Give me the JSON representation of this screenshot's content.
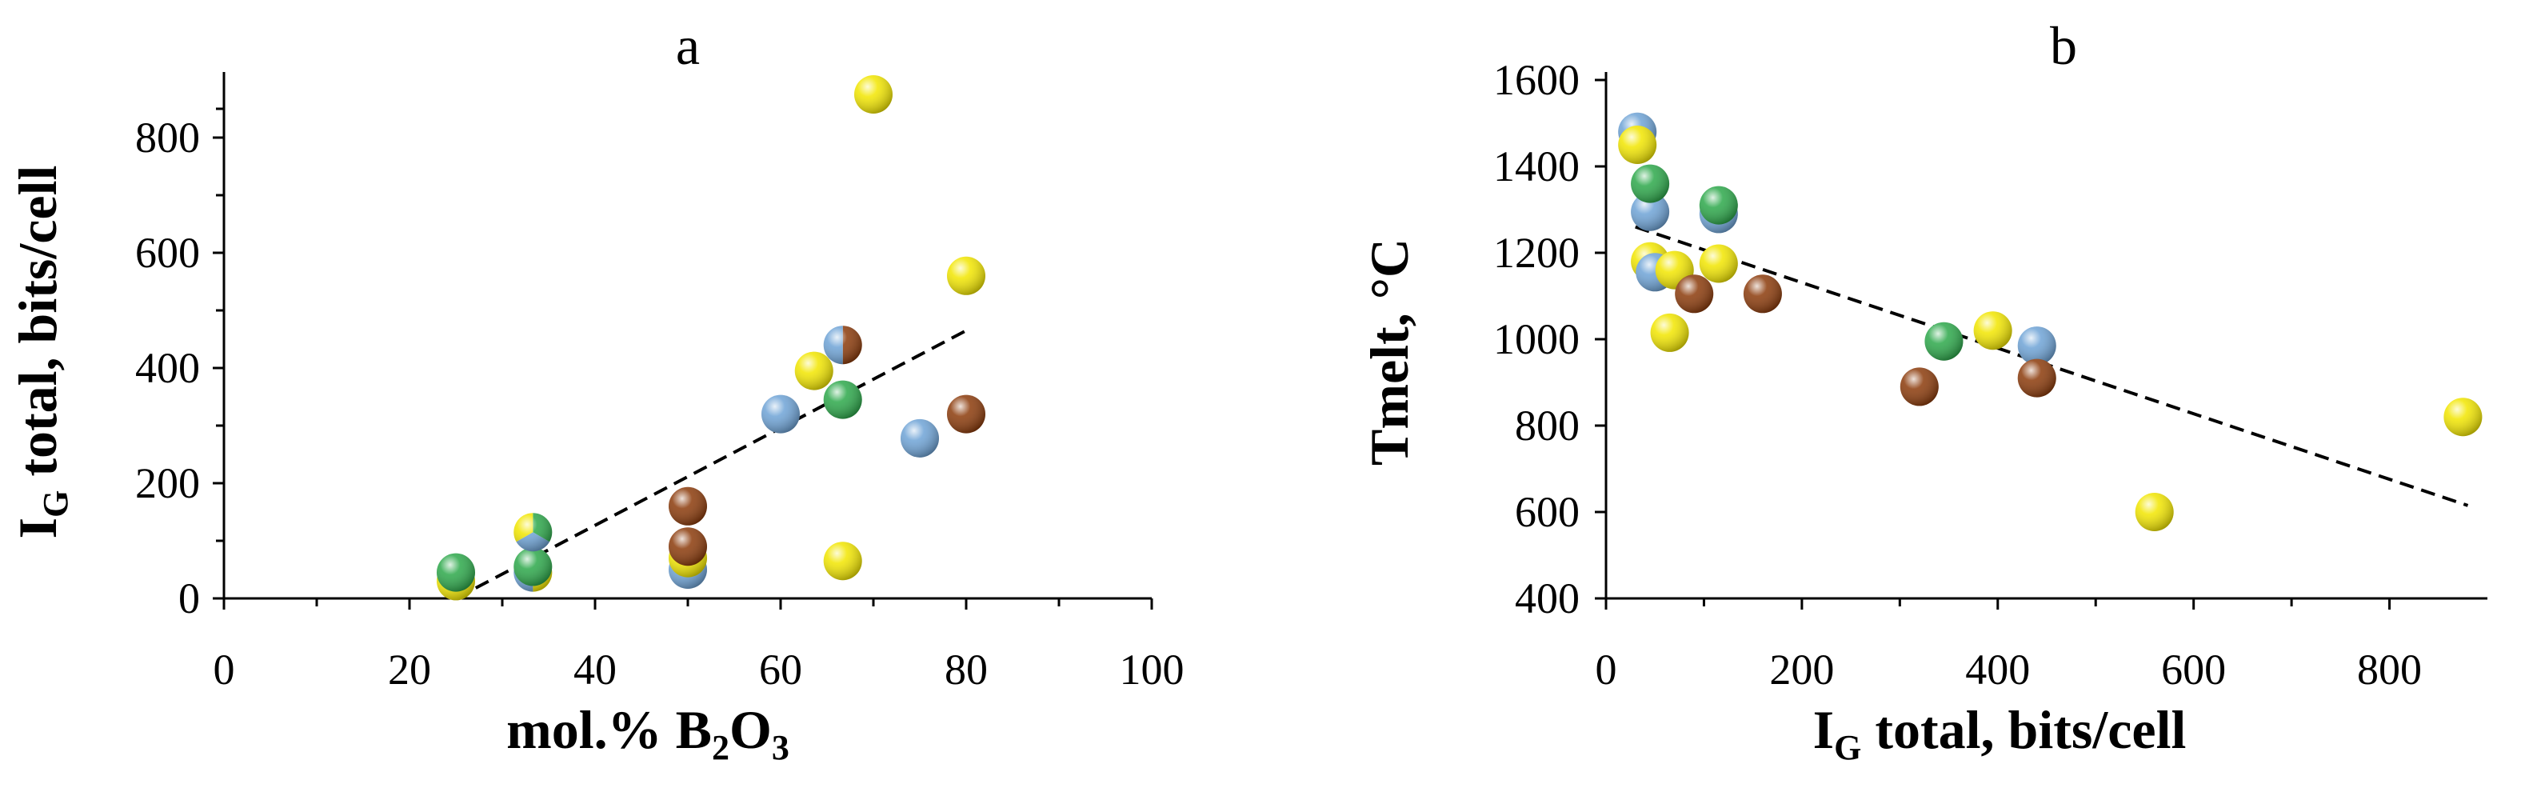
{
  "chart_data": [
    {
      "panel": "a",
      "type": "scatter",
      "xlim": [
        0,
        100
      ],
      "ylim": [
        0,
        900
      ],
      "xticks": [
        0,
        20,
        40,
        60,
        80,
        100
      ],
      "yticks": [
        0,
        200,
        400,
        600,
        800
      ],
      "ylabel_parts": [
        "I",
        "G",
        " total, bits/cell"
      ],
      "xlabel_parts": [
        "mol.% B",
        "2",
        "O",
        "3"
      ],
      "grid": false,
      "legend": "none",
      "trendline": {
        "x": [
          25,
          80
        ],
        "y": [
          0,
          465
        ]
      },
      "points": [
        {
          "x": 25,
          "y": 30,
          "colors": [
            "#f2e600"
          ]
        },
        {
          "x": 25,
          "y": 45,
          "colors": [
            "#2ca84a"
          ]
        },
        {
          "x": 33.3,
          "y": 45,
          "colors": [
            "#f2e600",
            "#6ea3d6"
          ]
        },
        {
          "x": 33.3,
          "y": 55,
          "colors": [
            "#2ca84a"
          ]
        },
        {
          "x": 33.3,
          "y": 115,
          "colors": [
            "#2ca84a",
            "#6ea3d6",
            "#f2e600"
          ]
        },
        {
          "x": 50,
          "y": 50,
          "colors": [
            "#6ea3d6"
          ]
        },
        {
          "x": 50,
          "y": 70,
          "colors": [
            "#f2e600"
          ]
        },
        {
          "x": 50,
          "y": 90,
          "colors": [
            "#8b3a0a"
          ]
        },
        {
          "x": 50,
          "y": 160,
          "colors": [
            "#8b3a0a"
          ]
        },
        {
          "x": 60,
          "y": 320,
          "colors": [
            "#6ea3d6"
          ]
        },
        {
          "x": 63.6,
          "y": 395,
          "colors": [
            "#f2e600"
          ]
        },
        {
          "x": 66.7,
          "y": 65,
          "colors": [
            "#f2e600"
          ]
        },
        {
          "x": 66.7,
          "y": 345,
          "colors": [
            "#2ca84a"
          ]
        },
        {
          "x": 66.7,
          "y": 440,
          "colors": [
            "#8b3a0a",
            "#6ea3d6"
          ]
        },
        {
          "x": 70,
          "y": 875,
          "colors": [
            "#f2e600"
          ]
        },
        {
          "x": 75,
          "y": 278,
          "colors": [
            "#6ea3d6"
          ]
        },
        {
          "x": 80,
          "y": 320,
          "colors": [
            "#8b3a0a"
          ]
        },
        {
          "x": 80,
          "y": 560,
          "colors": [
            "#f2e600"
          ]
        }
      ],
      "title": "a"
    },
    {
      "panel": "b",
      "type": "scatter",
      "xlim": [
        0,
        900
      ],
      "ylim": [
        400,
        1600
      ],
      "xticks": [
        0,
        200,
        400,
        600,
        800
      ],
      "yticks": [
        400,
        600,
        800,
        1000,
        1200,
        1400,
        1600
      ],
      "ylabel_parts": [
        "Tmelt, °C"
      ],
      "xlabel_parts": [
        "I",
        "G",
        " total, bits/cell"
      ],
      "grid": false,
      "legend": "none",
      "trendline": {
        "x": [
          30,
          880
        ],
        "y": [
          1260,
          615
        ]
      },
      "points": [
        {
          "x": 32,
          "y": 1480,
          "colors": [
            "#6ea3d6"
          ]
        },
        {
          "x": 32,
          "y": 1450,
          "colors": [
            "#f2e600"
          ]
        },
        {
          "x": 45,
          "y": 1295,
          "colors": [
            "#6ea3d6"
          ]
        },
        {
          "x": 45,
          "y": 1360,
          "colors": [
            "#2ca84a"
          ]
        },
        {
          "x": 45,
          "y": 1180,
          "colors": [
            "#f2e600"
          ]
        },
        {
          "x": 50,
          "y": 1155,
          "colors": [
            "#6ea3d6"
          ]
        },
        {
          "x": 65,
          "y": 1015,
          "colors": [
            "#f2e600"
          ]
        },
        {
          "x": 70,
          "y": 1160,
          "colors": [
            "#f2e600"
          ]
        },
        {
          "x": 90,
          "y": 1105,
          "colors": [
            "#8b3a0a"
          ]
        },
        {
          "x": 115,
          "y": 1290,
          "colors": [
            "#6ea3d6"
          ]
        },
        {
          "x": 115,
          "y": 1310,
          "colors": [
            "#2ca84a"
          ]
        },
        {
          "x": 115,
          "y": 1175,
          "colors": [
            "#f2e600"
          ]
        },
        {
          "x": 160,
          "y": 1105,
          "colors": [
            "#8b3a0a"
          ]
        },
        {
          "x": 320,
          "y": 890,
          "colors": [
            "#8b3a0a"
          ]
        },
        {
          "x": 345,
          "y": 995,
          "colors": [
            "#2ca84a"
          ]
        },
        {
          "x": 395,
          "y": 1020,
          "colors": [
            "#f2e600"
          ]
        },
        {
          "x": 440,
          "y": 985,
          "colors": [
            "#6ea3d6"
          ]
        },
        {
          "x": 440,
          "y": 910,
          "colors": [
            "#8b3a0a"
          ]
        },
        {
          "x": 560,
          "y": 600,
          "colors": [
            "#f2e600"
          ]
        },
        {
          "x": 875,
          "y": 820,
          "colors": [
            "#f2e600"
          ]
        }
      ],
      "title": "b"
    }
  ]
}
